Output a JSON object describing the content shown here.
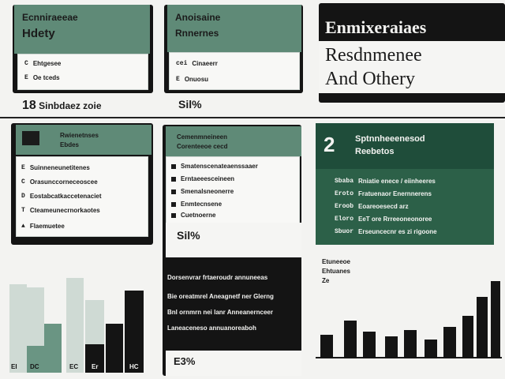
{
  "colors": {
    "dark": "#141414",
    "green": "#5f8a77",
    "deep_green": "#1f4d3a",
    "light": "#f8f8f6"
  },
  "panel_left": {
    "title_line1": "Ecnniraeeae",
    "title_line2": "Hdety",
    "rows": [
      "Ehtgesee",
      "Oe tceds"
    ],
    "stat": "Sinbdaez zoie"
  },
  "panel_mid": {
    "title_line1": "Anoisaine",
    "title_line2": "Rnnernes",
    "rows": [
      "Cinaeerr",
      "Onuosu"
    ],
    "stat": "Sil%"
  },
  "panel_right_title": {
    "line1": "Enmixeraiaes",
    "line2": "Resdnmenee",
    "line3": "And Othery"
  },
  "panel_left_2": {
    "header_line1": "Rwienetnses",
    "header_line2": "Ebdes",
    "rows": [
      "Suinneneunetitenes",
      "Orasunccorneceoscee",
      "Eostabcatkaccetenaciet",
      "Cteameunecrnorkaotes",
      "Flaemuetee"
    ]
  },
  "panel_mid_2": {
    "header_line1": "Cemenmneineen",
    "header_line2": "Corenteeoe cecd",
    "rows": [
      "Smatenscenateaenssaaer",
      "Erntaeeesceineen",
      "Smenalsneonerre",
      "Enmtecnsene",
      "Cuetnoerne"
    ],
    "stat": "Sil%",
    "body_lines": [
      "Dorsenvrar frtaeroudr annuneeas",
      "Bie oreatmrel Aneagnetf ner Glerng",
      "Bnl ornmrn nei lanr Anneanernceer",
      "Laneaceneso annuanoreaboh"
    ],
    "footer_stat": "E3%"
  },
  "panel_right_2": {
    "badge": "2",
    "header_line1": "Sptnnheeenesod",
    "header_line2": "Reebetos",
    "rows": [
      {
        "code": "Sbaba",
        "label": "Rniatie enece / eiinheeres"
      },
      {
        "code": "Eroto",
        "label": "Fratuenaor Enernnerens"
      },
      {
        "code": "Eroob",
        "label": "Eoareoesecd arz"
      },
      {
        "code": "Eloro",
        "label": "EeT ore Rrreeoneonoree"
      },
      {
        "code": "Sbuor",
        "label": "Erseuncecnr es zi rigoone"
      }
    ]
  },
  "bottom_left_chart": {
    "x_labels": [
      "EI",
      "DC",
      "EC",
      "Er",
      "HC"
    ]
  },
  "bottom_right": {
    "label_line1": "Etuneeoe",
    "label_line2": "Ehtuanes",
    "label_line3": "Ze"
  }
}
